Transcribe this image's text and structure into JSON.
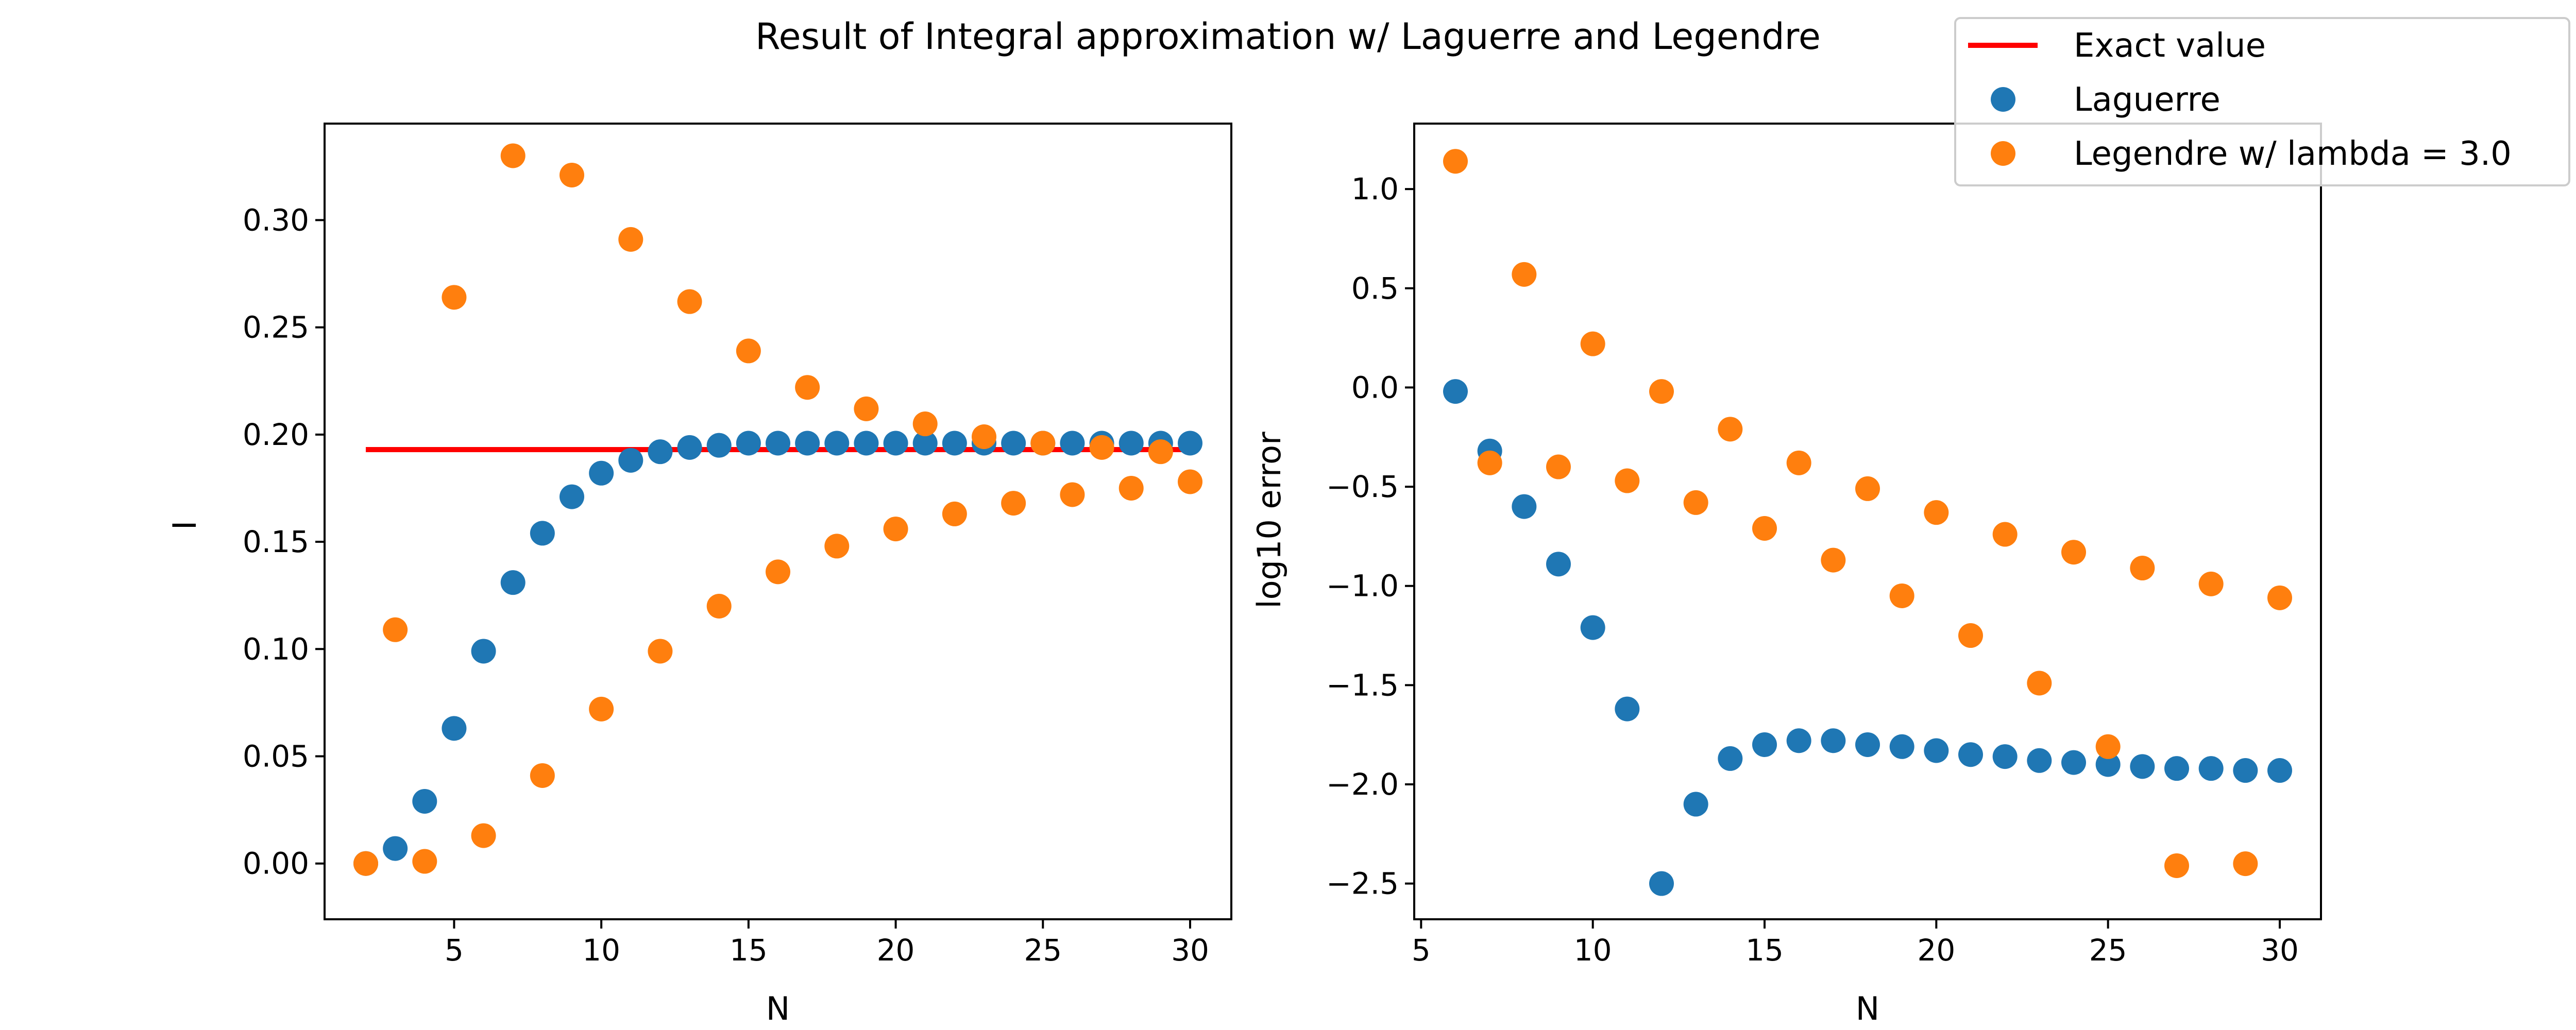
{
  "colors": {
    "exact": "#ff0000",
    "laguerre": "#1f77b4",
    "legendre": "#ff7f0e"
  },
  "legend": {
    "exact_label": "Exact value",
    "laguerre_label": "Laguerre",
    "legendre_label": "Legendre w/ lambda = 3.0",
    "placement": "top-right"
  },
  "chart_data": [
    {
      "type": "scatter",
      "title": "Result of Integral approximation w/ Laguerre and Legendre",
      "xlabel": "N",
      "ylabel": "I",
      "xlim": [
        0.6,
        31.4
      ],
      "ylim": [
        -0.026,
        0.345
      ],
      "xticks": [
        5,
        10,
        15,
        20,
        25,
        30
      ],
      "xtick_labels": [
        "5",
        "10",
        "15",
        "20",
        "25",
        "30"
      ],
      "yticks": [
        0.0,
        0.05,
        0.1,
        0.15,
        0.2,
        0.25,
        0.3
      ],
      "ytick_labels": [
        "0.00",
        "0.05",
        "0.10",
        "0.15",
        "0.20",
        "0.25",
        "0.30"
      ],
      "lines": [
        {
          "name": "Exact value",
          "x": [
            2,
            30
          ],
          "y": [
            0.193,
            0.193
          ]
        }
      ],
      "series": [
        {
          "name": "Laguerre",
          "x": [
            2,
            3,
            4,
            5,
            6,
            7,
            8,
            9,
            10,
            11,
            12,
            13,
            14,
            15,
            16,
            17,
            18,
            19,
            20,
            21,
            22,
            23,
            24,
            25,
            26,
            27,
            28,
            29,
            30
          ],
          "y": [
            0.0,
            0.007,
            0.029,
            0.063,
            0.099,
            0.131,
            0.154,
            0.171,
            0.182,
            0.188,
            0.192,
            0.194,
            0.195,
            0.196,
            0.196,
            0.196,
            0.196,
            0.196,
            0.196,
            0.196,
            0.196,
            0.196,
            0.196,
            0.196,
            0.196,
            0.196,
            0.196,
            0.196,
            0.196
          ]
        },
        {
          "name": "Legendre w/ lambda = 3.0",
          "x": [
            2,
            3,
            4,
            5,
            6,
            7,
            8,
            9,
            10,
            11,
            12,
            13,
            14,
            15,
            16,
            17,
            18,
            19,
            20,
            21,
            22,
            23,
            24,
            25,
            26,
            27,
            28,
            29,
            30
          ],
          "y": [
            0.0,
            0.109,
            0.001,
            0.264,
            0.013,
            0.33,
            0.041,
            0.321,
            0.072,
            0.291,
            0.099,
            0.262,
            0.12,
            0.239,
            0.136,
            0.222,
            0.148,
            0.212,
            0.156,
            0.205,
            0.163,
            0.199,
            0.168,
            0.196,
            0.172,
            0.194,
            0.175,
            0.192,
            0.178
          ]
        }
      ]
    },
    {
      "type": "scatter",
      "xlabel": "N",
      "ylabel": "log10 error",
      "xlim": [
        4.8,
        31.2
      ],
      "ylim": [
        -2.68,
        1.33
      ],
      "xticks": [
        5,
        10,
        15,
        20,
        25,
        30
      ],
      "xtick_labels": [
        "5",
        "10",
        "15",
        "20",
        "25",
        "30"
      ],
      "yticks": [
        -2.5,
        -2.0,
        -1.5,
        -1.0,
        -0.5,
        0.0,
        0.5,
        1.0
      ],
      "ytick_labels": [
        "−2.5",
        "−2.0",
        "−1.5",
        "−1.0",
        "−0.5",
        "0.0",
        "0.5",
        "1.0"
      ],
      "series": [
        {
          "name": "Laguerre",
          "x": [
            6,
            7,
            8,
            9,
            10,
            11,
            12,
            13,
            14,
            15,
            16,
            17,
            18,
            19,
            20,
            21,
            22,
            23,
            24,
            25,
            26,
            27,
            28,
            29,
            30
          ],
          "y": [
            -0.02,
            -0.32,
            -0.6,
            -0.89,
            -1.21,
            -1.62,
            -2.5,
            -2.1,
            -1.87,
            -1.8,
            -1.78,
            -1.78,
            -1.8,
            -1.81,
            -1.83,
            -1.85,
            -1.86,
            -1.88,
            -1.89,
            -1.9,
            -1.91,
            -1.92,
            -1.92,
            -1.93,
            -1.93
          ]
        },
        {
          "name": "Legendre w/ lambda = 3.0",
          "x": [
            6,
            7,
            8,
            9,
            10,
            11,
            12,
            13,
            14,
            15,
            16,
            17,
            18,
            19,
            20,
            21,
            22,
            23,
            24,
            25,
            26,
            27,
            28,
            29,
            30
          ],
          "y": [
            1.14,
            -0.38,
            0.57,
            -0.4,
            0.22,
            -0.47,
            -0.02,
            -0.58,
            -0.21,
            -0.71,
            -0.38,
            -0.87,
            -0.51,
            -1.05,
            -0.63,
            -1.25,
            -0.74,
            -1.49,
            -0.83,
            -1.81,
            -0.91,
            -2.41,
            -0.99,
            -2.4,
            -1.06
          ]
        }
      ]
    }
  ]
}
